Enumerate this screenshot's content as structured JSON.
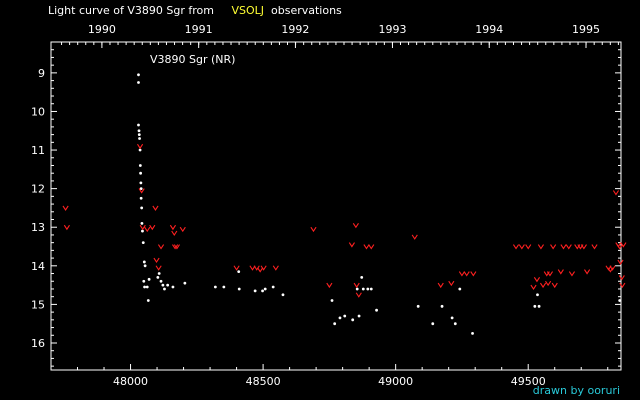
{
  "title": {
    "prefix": "Light curve of V3890 Sgr from",
    "highlight": "VSOLJ",
    "suffix": "observations"
  },
  "credit": "drawn by ooruri",
  "colors": {
    "background": "#000000",
    "axis": "#ffffff",
    "positive": "#ffffff",
    "negative": "#ff2020",
    "title_highlight": "#ffff33",
    "credit": "#29c9d8"
  },
  "chart_data": {
    "type": "scatter",
    "star_label": "V3890 Sgr (NR)",
    "xlim": [
      47700,
      49850
    ],
    "ylim": [
      16.7,
      8.2
    ],
    "y_inverted": true,
    "x_ticks": [
      48000,
      48500,
      49000,
      49500
    ],
    "y_ticks": [
      9,
      10,
      11,
      12,
      13,
      14,
      15,
      16
    ],
    "year_ticks": [
      {
        "label": "1990",
        "x": 47892
      },
      {
        "label": "1991",
        "x": 48257
      },
      {
        "label": "1992",
        "x": 48622
      },
      {
        "label": "1993",
        "x": 48988
      },
      {
        "label": "1994",
        "x": 49353
      },
      {
        "label": "1995",
        "x": 49718
      }
    ],
    "grid": false,
    "series": [
      {
        "marker": "dot",
        "color": "#ffffff",
        "points": [
          [
            48030,
            9.05
          ],
          [
            48030,
            9.25
          ],
          [
            48030,
            10.35
          ],
          [
            48032,
            10.5
          ],
          [
            48033,
            10.6
          ],
          [
            48034,
            10.7
          ],
          [
            48036,
            11.0
          ],
          [
            48037,
            11.4
          ],
          [
            48038,
            11.6
          ],
          [
            48039,
            11.85
          ],
          [
            48040,
            12.0
          ],
          [
            48040,
            12.25
          ],
          [
            48042,
            12.5
          ],
          [
            48043,
            12.9
          ],
          [
            48045,
            13.1
          ],
          [
            48048,
            13.4
          ],
          [
            48052,
            13.9
          ],
          [
            48055,
            14.0
          ],
          [
            48050,
            14.4
          ],
          [
            48053,
            14.55
          ],
          [
            48063,
            14.55
          ],
          [
            48067,
            14.9
          ],
          [
            48070,
            14.35
          ],
          [
            48103,
            14.3
          ],
          [
            48108,
            14.2
          ],
          [
            48115,
            14.4
          ],
          [
            48122,
            14.5
          ],
          [
            48128,
            14.6
          ],
          [
            48140,
            14.5
          ],
          [
            48160,
            14.55
          ],
          [
            48205,
            14.45
          ],
          [
            48320,
            14.55
          ],
          [
            48352,
            14.55
          ],
          [
            48408,
            14.15
          ],
          [
            48410,
            14.6
          ],
          [
            48470,
            14.65
          ],
          [
            48498,
            14.65
          ],
          [
            48508,
            14.6
          ],
          [
            48538,
            14.55
          ],
          [
            48575,
            14.75
          ],
          [
            48760,
            14.9
          ],
          [
            48770,
            15.5
          ],
          [
            48790,
            15.35
          ],
          [
            48808,
            15.3
          ],
          [
            48838,
            15.4
          ],
          [
            48855,
            14.6
          ],
          [
            48862,
            15.3
          ],
          [
            48872,
            14.3
          ],
          [
            48878,
            14.6
          ],
          [
            48895,
            14.6
          ],
          [
            48908,
            14.6
          ],
          [
            48928,
            15.15
          ],
          [
            49085,
            15.05
          ],
          [
            49140,
            15.5
          ],
          [
            49175,
            15.05
          ],
          [
            49213,
            15.35
          ],
          [
            49225,
            15.5
          ],
          [
            49242,
            14.6
          ],
          [
            49290,
            15.75
          ],
          [
            49525,
            15.05
          ],
          [
            49535,
            14.75
          ],
          [
            49541,
            15.05
          ],
          [
            49845,
            14.9
          ]
        ]
      },
      {
        "marker": "v",
        "color": "#ff2020",
        "points": [
          [
            47755,
            12.5
          ],
          [
            47760,
            13.0
          ],
          [
            48036,
            10.9
          ],
          [
            48042,
            12.05
          ],
          [
            48046,
            13.0
          ],
          [
            48063,
            13.05
          ],
          [
            48082,
            13.0
          ],
          [
            48094,
            12.5
          ],
          [
            48098,
            13.85
          ],
          [
            48106,
            14.05
          ],
          [
            48115,
            13.5
          ],
          [
            48160,
            13.0
          ],
          [
            48165,
            13.15
          ],
          [
            48168,
            13.5
          ],
          [
            48175,
            13.5
          ],
          [
            48197,
            13.05
          ],
          [
            48400,
            14.05
          ],
          [
            48460,
            14.05
          ],
          [
            48476,
            14.05
          ],
          [
            48489,
            14.1
          ],
          [
            48502,
            14.05
          ],
          [
            48548,
            14.05
          ],
          [
            48690,
            13.05
          ],
          [
            48750,
            14.5
          ],
          [
            48835,
            13.45
          ],
          [
            48850,
            12.95
          ],
          [
            48853,
            14.5
          ],
          [
            48861,
            14.75
          ],
          [
            48890,
            13.5
          ],
          [
            48908,
            13.5
          ],
          [
            49072,
            13.25
          ],
          [
            49170,
            14.5
          ],
          [
            49210,
            14.45
          ],
          [
            49250,
            14.2
          ],
          [
            49268,
            14.2
          ],
          [
            49293,
            14.2
          ],
          [
            49454,
            13.5
          ],
          [
            49476,
            13.5
          ],
          [
            49500,
            13.5
          ],
          [
            49520,
            14.55
          ],
          [
            49533,
            14.35
          ],
          [
            49548,
            13.5
          ],
          [
            49556,
            14.5
          ],
          [
            49570,
            14.2
          ],
          [
            49575,
            14.45
          ],
          [
            49582,
            14.2
          ],
          [
            49594,
            13.5
          ],
          [
            49600,
            14.5
          ],
          [
            49623,
            14.15
          ],
          [
            49633,
            13.5
          ],
          [
            49653,
            13.5
          ],
          [
            49665,
            14.2
          ],
          [
            49685,
            13.5
          ],
          [
            49697,
            13.5
          ],
          [
            49710,
            13.5
          ],
          [
            49722,
            14.15
          ],
          [
            49750,
            13.5
          ],
          [
            49803,
            14.05
          ],
          [
            49810,
            14.1
          ],
          [
            49818,
            14.05
          ],
          [
            49831,
            12.1
          ],
          [
            49840,
            13.45
          ],
          [
            49845,
            13.5
          ],
          [
            49848,
            13.9
          ],
          [
            49853,
            14.3
          ],
          [
            49855,
            14.5
          ],
          [
            49859,
            13.45
          ]
        ]
      }
    ]
  }
}
